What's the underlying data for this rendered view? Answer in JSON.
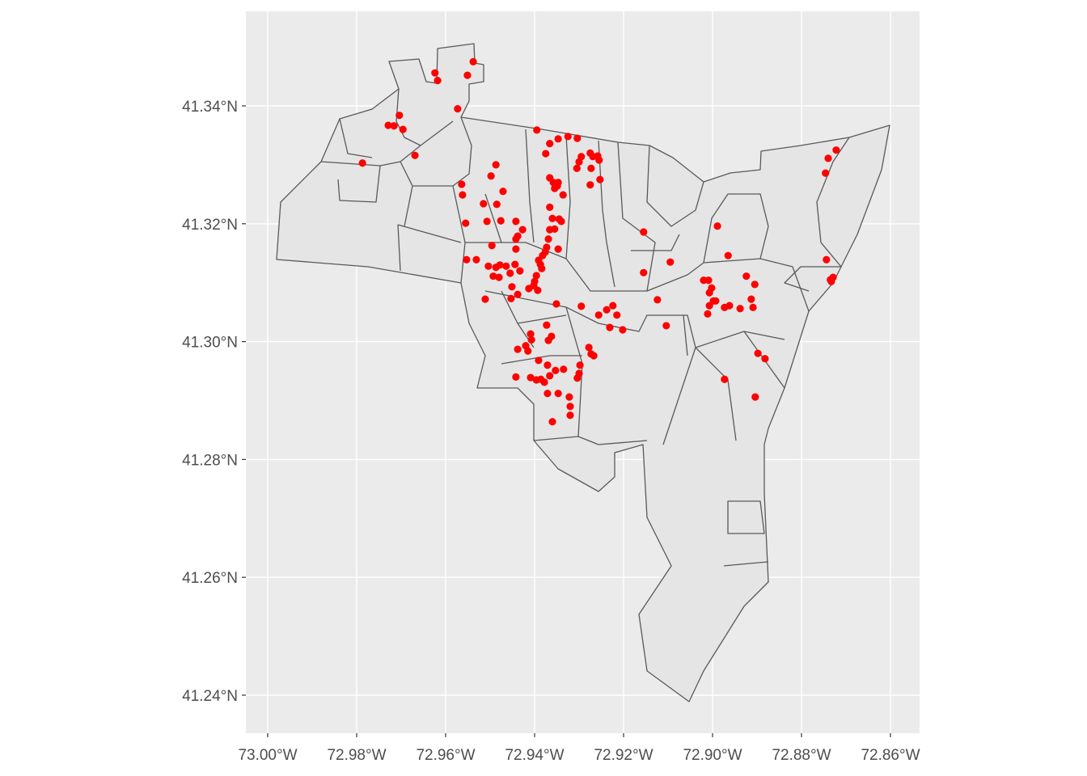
{
  "chart_data": {
    "type": "scatter",
    "title": "",
    "xlabel": "",
    "ylabel": "",
    "xlim": [
      -73.005,
      -72.853
    ],
    "ylim": [
      41.2335,
      41.3565
    ],
    "grid": true,
    "legend": "none",
    "point_color": "#FF0000",
    "polygon_fill": "#E5E5E5",
    "polygon_stroke": "#595959",
    "panel_background": "#EBEBEB",
    "x_ticks": [
      {
        "value": -73.0,
        "label": "73.00°W"
      },
      {
        "value": -72.98,
        "label": "72.98°W"
      },
      {
        "value": -72.96,
        "label": "72.96°W"
      },
      {
        "value": -72.94,
        "label": "72.94°W"
      },
      {
        "value": -72.92,
        "label": "72.92°W"
      },
      {
        "value": -72.9,
        "label": "72.90°W"
      },
      {
        "value": -72.88,
        "label": "72.88°W"
      },
      {
        "value": -72.86,
        "label": "72.86°W"
      }
    ],
    "y_ticks": [
      {
        "value": 41.24,
        "label": "41.24°N"
      },
      {
        "value": 41.26,
        "label": "41.26°N"
      },
      {
        "value": 41.28,
        "label": "41.28°N"
      },
      {
        "value": 41.3,
        "label": "41.30°N"
      },
      {
        "value": 41.32,
        "label": "41.32°N"
      },
      {
        "value": 41.34,
        "label": "41.34°N"
      }
    ],
    "points": [
      [
        -72.9624,
        41.3456
      ],
      [
        -72.9618,
        41.3443
      ],
      [
        -72.9538,
        41.3475
      ],
      [
        -72.9551,
        41.3452
      ],
      [
        -72.9573,
        41.3395
      ],
      [
        -72.9729,
        41.3367
      ],
      [
        -72.9716,
        41.3366
      ],
      [
        -72.9704,
        41.3384
      ],
      [
        -72.9696,
        41.336
      ],
      [
        -72.9669,
        41.3316
      ],
      [
        -72.9787,
        41.3303
      ],
      [
        -72.9395,
        41.3359
      ],
      [
        -72.9366,
        41.3336
      ],
      [
        -72.9347,
        41.3344
      ],
      [
        -72.9325,
        41.3348
      ],
      [
        -72.9304,
        41.3345
      ],
      [
        -72.9375,
        41.3319
      ],
      [
        -72.9295,
        41.3314
      ],
      [
        -72.93,
        41.3305
      ],
      [
        -72.9305,
        41.3294
      ],
      [
        -72.9275,
        41.332
      ],
      [
        -72.9269,
        41.3314
      ],
      [
        -72.9258,
        41.3315
      ],
      [
        -72.9255,
        41.3308
      ],
      [
        -72.9273,
        41.3294
      ],
      [
        -72.9253,
        41.3275
      ],
      [
        -72.9275,
        41.3266
      ],
      [
        -72.9487,
        41.33
      ],
      [
        -72.9498,
        41.3281
      ],
      [
        -72.9471,
        41.3255
      ],
      [
        -72.9564,
        41.3267
      ],
      [
        -72.9562,
        41.3249
      ],
      [
        -72.9515,
        41.3234
      ],
      [
        -72.9485,
        41.3233
      ],
      [
        -72.9366,
        41.3278
      ],
      [
        -72.9358,
        41.327
      ],
      [
        -72.9349,
        41.3264
      ],
      [
        -72.9347,
        41.327
      ],
      [
        -72.9355,
        41.326
      ],
      [
        -72.9336,
        41.3249
      ],
      [
        -72.9366,
        41.3228
      ],
      [
        -72.9345,
        41.3208
      ],
      [
        -72.934,
        41.3204
      ],
      [
        -72.936,
        41.3209
      ],
      [
        -72.9555,
        41.3201
      ],
      [
        -72.9507,
        41.3204
      ],
      [
        -72.9476,
        41.3205
      ],
      [
        -72.9442,
        41.3204
      ],
      [
        -72.9427,
        41.319
      ],
      [
        -72.9438,
        41.3179
      ],
      [
        -72.9442,
        41.3174
      ],
      [
        -72.9355,
        41.3191
      ],
      [
        -72.9366,
        41.319
      ],
      [
        -72.9369,
        41.3174
      ],
      [
        -72.9496,
        41.3163
      ],
      [
        -72.9442,
        41.3157
      ],
      [
        -72.9373,
        41.316
      ],
      [
        -72.9376,
        41.3152
      ],
      [
        -72.9382,
        41.3146
      ],
      [
        -72.9347,
        41.3157
      ],
      [
        -72.9553,
        41.3139
      ],
      [
        -72.9531,
        41.3139
      ],
      [
        -72.9504,
        41.3128
      ],
      [
        -72.9487,
        41.3126
      ],
      [
        -72.9478,
        41.313
      ],
      [
        -72.9464,
        41.3128
      ],
      [
        -72.9444,
        41.3131
      ],
      [
        -72.9433,
        41.312
      ],
      [
        -72.9391,
        41.3138
      ],
      [
        -72.9387,
        41.3131
      ],
      [
        -72.9384,
        41.3124
      ],
      [
        -72.9493,
        41.3111
      ],
      [
        -72.948,
        41.3109
      ],
      [
        -72.9455,
        41.3116
      ],
      [
        -72.9396,
        41.3112
      ],
      [
        -72.94,
        41.3102
      ],
      [
        -72.9402,
        41.3095
      ],
      [
        -72.9451,
        41.3093
      ],
      [
        -72.9413,
        41.309
      ],
      [
        -72.9393,
        41.3087
      ],
      [
        -72.9438,
        41.308
      ],
      [
        -72.9453,
        41.3073
      ],
      [
        -72.9511,
        41.3072
      ],
      [
        -72.9351,
        41.3064
      ],
      [
        -72.9295,
        41.306
      ],
      [
        -72.9256,
        41.3045
      ],
      [
        -72.9238,
        41.3054
      ],
      [
        -72.9224,
        41.3061
      ],
      [
        -72.9215,
        41.3045
      ],
      [
        -72.9231,
        41.3024
      ],
      [
        -72.9202,
        41.302
      ],
      [
        -72.9155,
        41.3186
      ],
      [
        -72.9155,
        41.3117
      ],
      [
        -72.9095,
        41.3135
      ],
      [
        -72.9124,
        41.3071
      ],
      [
        -72.9104,
        41.3027
      ],
      [
        -72.8989,
        41.3196
      ],
      [
        -72.8965,
        41.3146
      ],
      [
        -72.902,
        41.3104
      ],
      [
        -72.9009,
        41.3104
      ],
      [
        -72.9002,
        41.3091
      ],
      [
        -72.9007,
        41.3083
      ],
      [
        -72.8998,
        41.3069
      ],
      [
        -72.9007,
        41.3061
      ],
      [
        -72.9011,
        41.3047
      ],
      [
        -72.8993,
        41.3069
      ],
      [
        -72.8973,
        41.3058
      ],
      [
        -72.8962,
        41.3061
      ],
      [
        -72.8938,
        41.3056
      ],
      [
        -72.8913,
        41.3072
      ],
      [
        -72.8909,
        41.3058
      ],
      [
        -72.8924,
        41.3111
      ],
      [
        -72.8905,
        41.3097
      ],
      [
        -72.9373,
        41.3028
      ],
      [
        -72.9409,
        41.3013
      ],
      [
        -72.9407,
        41.3003
      ],
      [
        -72.9362,
        41.3009
      ],
      [
        -72.9369,
        41.3002
      ],
      [
        -72.942,
        41.2993
      ],
      [
        -72.9415,
        41.2984
      ],
      [
        -72.9438,
        41.2987
      ],
      [
        -72.9391,
        41.2968
      ],
      [
        -72.9371,
        41.296
      ],
      [
        -72.9366,
        41.2942
      ],
      [
        -72.9386,
        41.2936
      ],
      [
        -72.9396,
        41.2935
      ],
      [
        -72.9378,
        41.2931
      ],
      [
        -72.9442,
        41.294
      ],
      [
        -72.9409,
        41.2939
      ],
      [
        -72.9353,
        41.2951
      ],
      [
        -72.9335,
        41.2953
      ],
      [
        -72.9371,
        41.2912
      ],
      [
        -72.9347,
        41.2912
      ],
      [
        -72.9298,
        41.296
      ],
      [
        -72.93,
        41.2946
      ],
      [
        -72.9304,
        41.2938
      ],
      [
        -72.9322,
        41.2906
      ],
      [
        -72.932,
        41.289
      ],
      [
        -72.932,
        41.2875
      ],
      [
        -72.936,
        41.2864
      ],
      [
        -72.9278,
        41.299
      ],
      [
        -72.9273,
        41.2979
      ],
      [
        -72.9267,
        41.2976
      ],
      [
        -72.8973,
        41.2936
      ],
      [
        -72.8898,
        41.298
      ],
      [
        -72.8882,
        41.2971
      ],
      [
        -72.8904,
        41.2906
      ],
      [
        -72.874,
        41.3311
      ],
      [
        -72.8722,
        41.3325
      ],
      [
        -72.8746,
        41.3286
      ],
      [
        -72.8744,
        41.3139
      ],
      [
        -72.8733,
        41.3102
      ],
      [
        -72.8729,
        41.3109
      ],
      [
        -72.8735,
        41.3105
      ]
    ]
  }
}
